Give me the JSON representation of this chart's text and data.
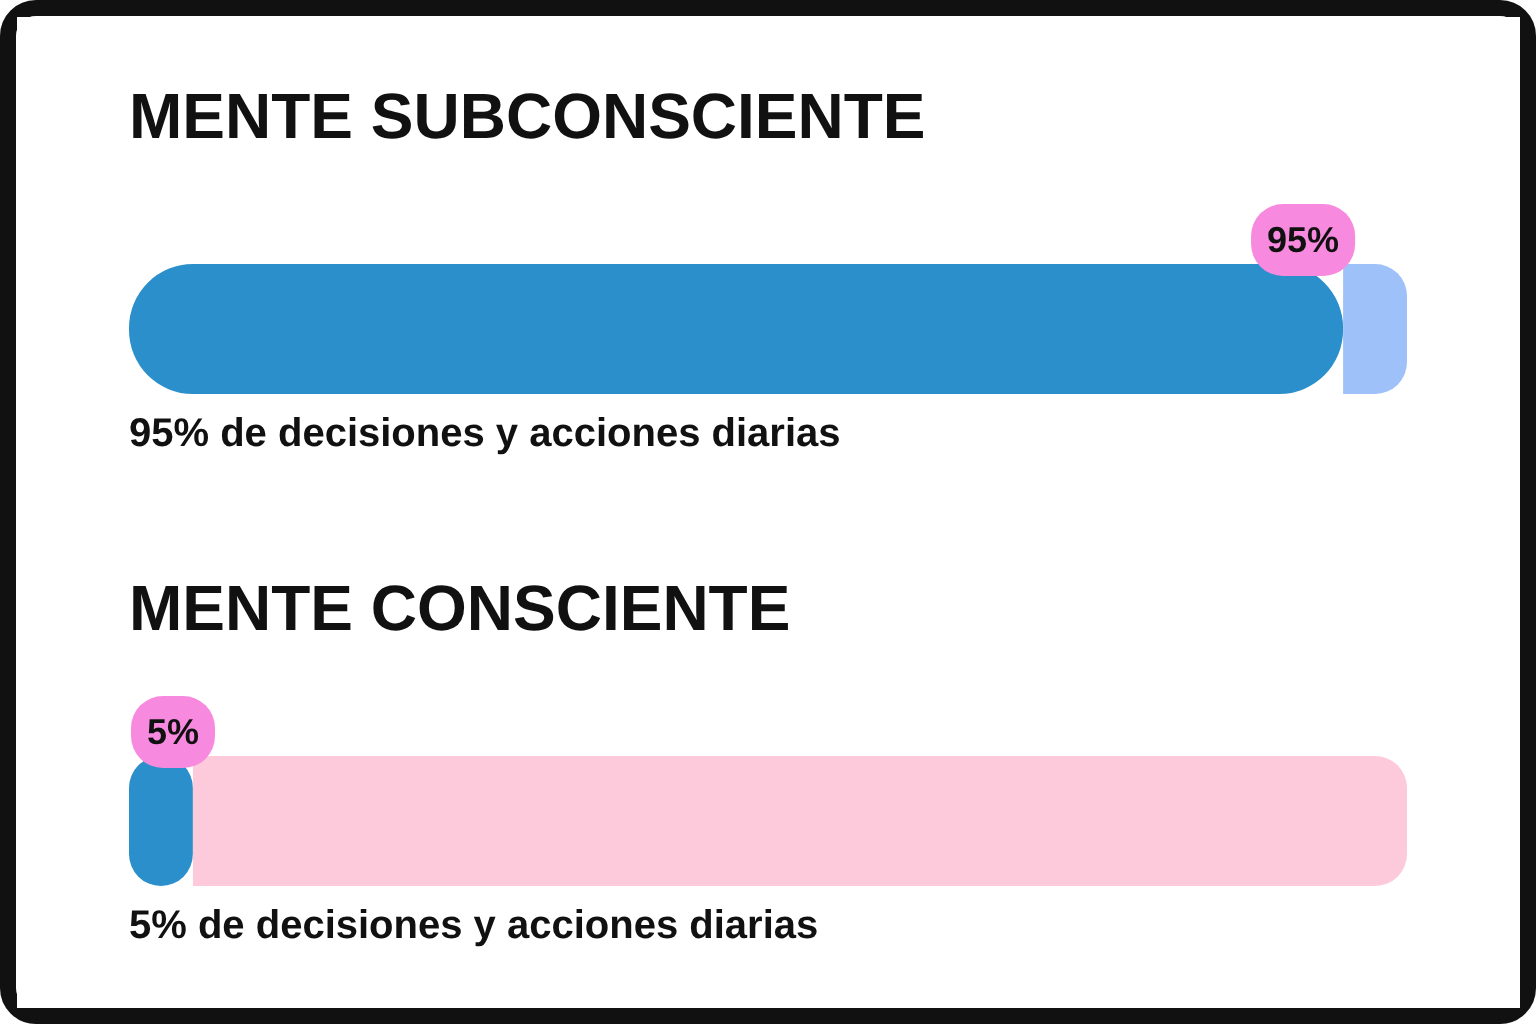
{
  "chart_data": {
    "type": "bar",
    "orientation": "horizontal",
    "stacked": true,
    "categories": [
      "MENTE SUBCONSCIENTE",
      "MENTE CONSCIENTE"
    ],
    "xlim": [
      0,
      100
    ],
    "tick_labels": "y",
    "series": [
      {
        "colors": [
          "#2a8fca",
          "#2a8fca"
        ],
        "values": [
          95,
          5
        ],
        "value_labels": [
          "95%",
          "5%"
        ]
      },
      {
        "colors": [
          "#9dc1f8",
          "#fdcadb"
        ],
        "values": [
          5,
          95
        ]
      }
    ],
    "annotations": [
      "95% de decisiones y acciones diarias",
      "5% de decisiones y acciones diarias"
    ]
  }
}
